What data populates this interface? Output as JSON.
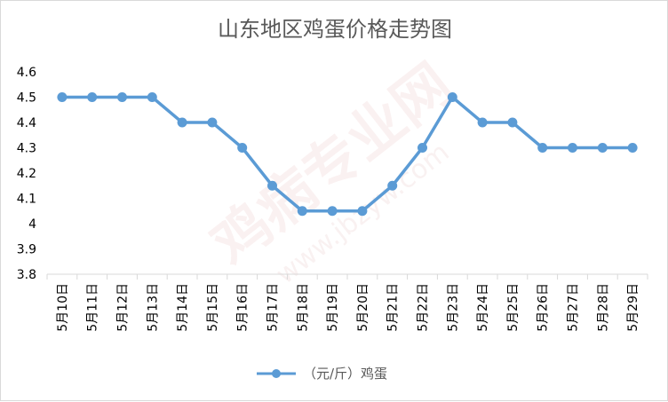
{
  "chart_data": {
    "type": "line",
    "title": "山东地区鸡蛋价格走势图",
    "categories": [
      "5月10日",
      "5月11日",
      "5月12日",
      "5月13日",
      "5月14日",
      "5月15日",
      "5月16日",
      "5月17日",
      "5月18日",
      "5月19日",
      "5月20日",
      "5月21日",
      "5月22日",
      "5月23日",
      "5月24日",
      "5月25日",
      "5月26日",
      "5月27日",
      "5月28日",
      "5月29日"
    ],
    "series": [
      {
        "name": "（元/斤）鸡蛋",
        "values": [
          4.5,
          4.5,
          4.5,
          4.5,
          4.4,
          4.4,
          4.3,
          4.15,
          4.05,
          4.05,
          4.05,
          4.15,
          4.3,
          4.5,
          4.4,
          4.4,
          4.3,
          4.3,
          4.3,
          4.3
        ]
      }
    ],
    "ylim": [
      3.8,
      4.6
    ],
    "yticks": [
      "3.8",
      "3.9",
      "4",
      "4.1",
      "4.2",
      "4.3",
      "4.4",
      "4.5",
      "4.6"
    ],
    "xlabel": "",
    "ylabel": "",
    "grid": false,
    "legend_position": "bottom",
    "color": "#5b9bd5"
  },
  "watermark": {
    "main": "鸡病专业网",
    "sub": "www.jbzyw.com"
  }
}
